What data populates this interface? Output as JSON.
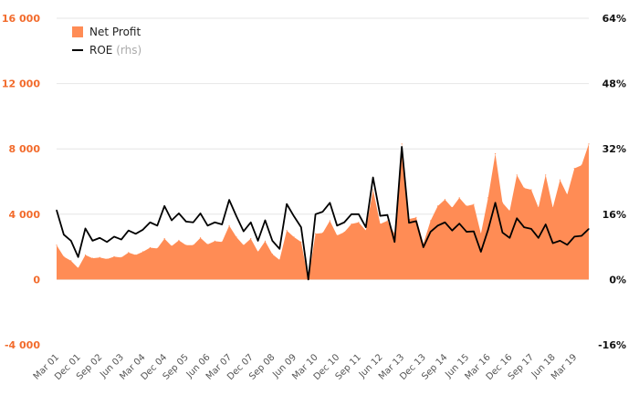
{
  "chart_data": {
    "type": "area",
    "title": "",
    "xlabel": "",
    "ylabel": "",
    "y_left_lim": [
      -4000,
      16000
    ],
    "y_left_ticks": [
      -4000,
      0,
      4000,
      8000,
      12000,
      16000
    ],
    "y_left_tick_labels": [
      "-4 000",
      "0",
      "4 000",
      "8 000",
      "12 000",
      "16 000"
    ],
    "y_right_lim": [
      -16,
      64
    ],
    "y_right_ticks": [
      -16,
      0,
      16,
      32,
      48,
      64
    ],
    "y_right_tick_labels": [
      "-16%",
      "0%",
      "16%",
      "32%",
      "48%",
      "64%"
    ],
    "x_tick_labels": [
      "Mar 01",
      "Dec 01",
      "Sep 02",
      "Jun 03",
      "Mar 04",
      "Dec 04",
      "Sep 05",
      "Jun 06",
      "Mar 07",
      "Dec 07",
      "Sep 08",
      "Jun 09",
      "Mar 10",
      "Dec 10",
      "Sep 11",
      "Jun 12",
      "Mar 13",
      "Dec 13",
      "Sep 14",
      "Jun 15",
      "Mar 16",
      "Dec 16",
      "Sep 17",
      "Jun 18",
      "Mar 19"
    ],
    "grid": true,
    "legend_position": "top-left",
    "colors": {
      "net_profit": "#ff8c55",
      "roe": "#000000",
      "left_axis": "#f26b2c",
      "right_axis": "#111111",
      "grid": "#e6e6e6"
    },
    "series": [
      {
        "name": "Net Profit",
        "axis": "left",
        "style": "area",
        "values": [
          2100,
          1400,
          1150,
          700,
          1500,
          1300,
          1350,
          1250,
          1400,
          1350,
          1650,
          1500,
          1700,
          1950,
          1900,
          2500,
          2050,
          2400,
          2100,
          2100,
          2550,
          2150,
          2350,
          2300,
          3300,
          2600,
          2100,
          2500,
          1700,
          2350,
          1550,
          1200,
          3000,
          2600,
          2300,
          0,
          2800,
          2850,
          3600,
          2700,
          2900,
          3400,
          3500,
          3000,
          5500,
          3400,
          3600,
          2800,
          8300,
          3700,
          3800,
          2200,
          3600,
          4500,
          4900,
          4400,
          5000,
          4500,
          4600,
          2800,
          5000,
          7700,
          4700,
          4200,
          6400,
          5600,
          5500,
          4400,
          6400,
          4400,
          6100,
          5200,
          6800,
          7000,
          8300
        ]
      },
      {
        "name": "ROE",
        "legend_suffix": "(rhs)",
        "axis": "right",
        "style": "line",
        "values": [
          17,
          11,
          9.5,
          5.5,
          12.5,
          9.5,
          10.2,
          9.2,
          10.5,
          9.8,
          12,
          11.2,
          12.2,
          14,
          13.2,
          18,
          14.5,
          16.2,
          14.2,
          14,
          16.2,
          13.2,
          14,
          13.5,
          19.5,
          15.5,
          11.8,
          14,
          9.5,
          14.5,
          9.5,
          7.5,
          18.5,
          15.5,
          12.8,
          0,
          16,
          16.6,
          18.8,
          13.2,
          14,
          16,
          16,
          12.8,
          25,
          15.6,
          15.8,
          9.2,
          32.5,
          13.9,
          14.3,
          7.9,
          11.7,
          13.2,
          14,
          12,
          13.7,
          11.7,
          11.8,
          6.8,
          12.2,
          18.8,
          11.5,
          10.2,
          15,
          12.8,
          12.4,
          10.2,
          13.5,
          8.9,
          9.5,
          8.5,
          10.5,
          10.7,
          12.4
        ]
      }
    ]
  }
}
